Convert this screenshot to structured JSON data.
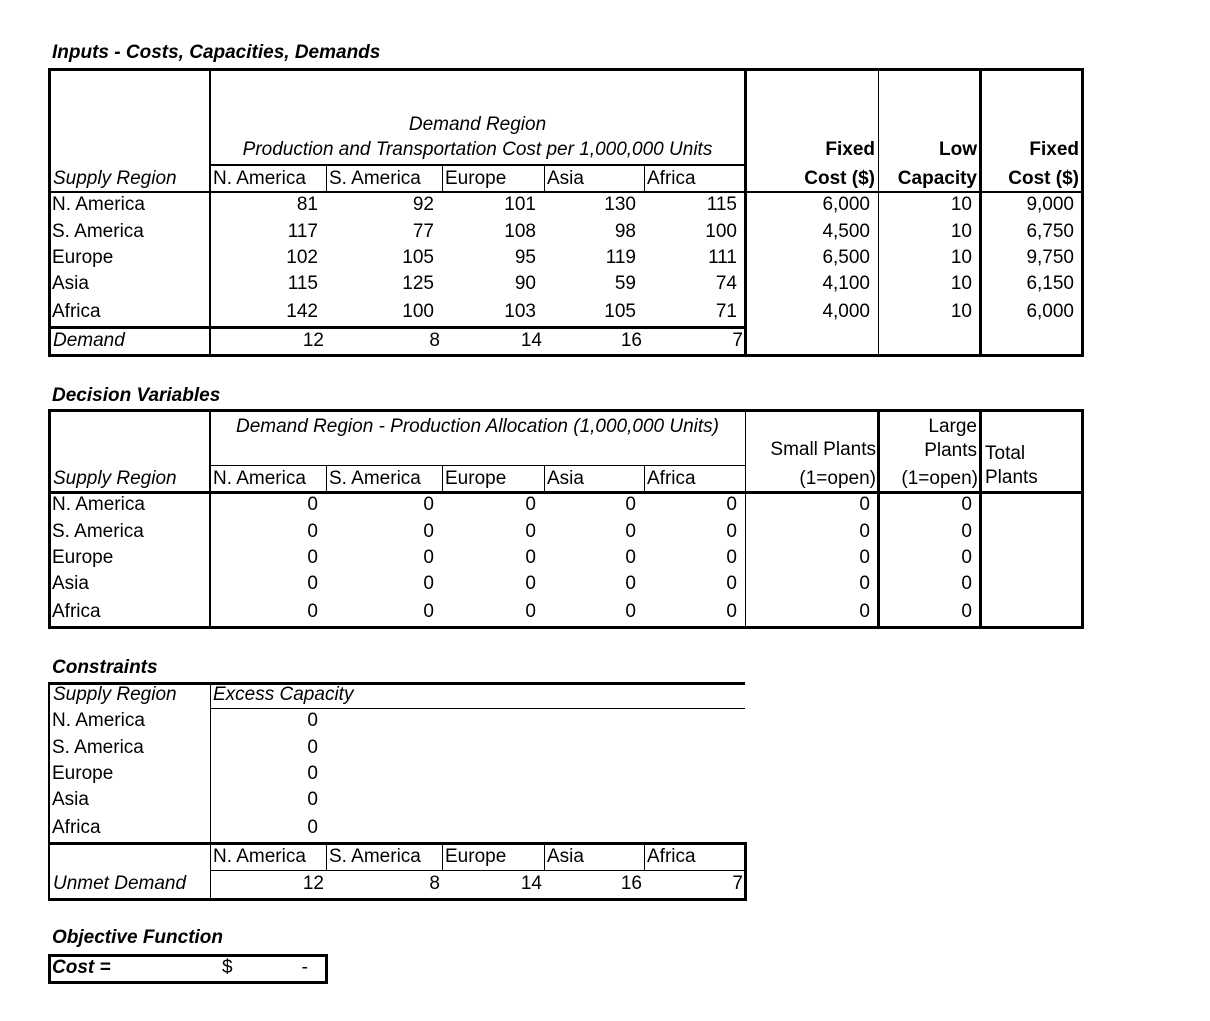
{
  "inputs": {
    "title": "Inputs - Costs, Capacities, Demands",
    "header": {
      "demand_region": "Demand Region",
      "subtitle": "Production and Transportation Cost per 1,000,000 Units",
      "supply_region": "Supply Region",
      "columns": [
        "N. America",
        "S. America",
        "Europe",
        "Asia",
        "Africa"
      ],
      "fixed_cost_small": [
        "Fixed",
        "Cost ($)"
      ],
      "low_capacity": [
        "Low",
        "Capacity"
      ],
      "fixed_cost_large": [
        "Fixed",
        "Cost ($)"
      ]
    },
    "rows": [
      [
        "N. America",
        81,
        92,
        101,
        130,
        115,
        "6,000",
        10,
        "9,000"
      ],
      [
        "S. America",
        117,
        77,
        108,
        98,
        100,
        "4,500",
        10,
        "6,750"
      ],
      [
        "Europe",
        102,
        105,
        95,
        119,
        111,
        "6,500",
        10,
        "9,750"
      ],
      [
        "Asia",
        115,
        125,
        90,
        59,
        74,
        "4,100",
        10,
        "6,150"
      ],
      [
        "Africa",
        142,
        100,
        103,
        105,
        71,
        "4,000",
        10,
        "6,000"
      ]
    ],
    "demand": {
      "label": "Demand",
      "values": [
        12,
        8,
        14,
        16,
        7
      ]
    }
  },
  "decision_variables": {
    "title": "Decision Variables",
    "header": {
      "allocation": "Demand Region - Production Allocation (1,000,000 Units)",
      "supply_region": "Supply Region",
      "columns": [
        "N. America",
        "S. America",
        "Europe",
        "Asia",
        "Africa"
      ],
      "small_plants": [
        "Small Plants",
        "(1=open)"
      ],
      "large_plants": [
        "Large Plants",
        "(1=open)"
      ],
      "total_plants": "Total Plants"
    },
    "rows": [
      [
        "N. America",
        0,
        0,
        0,
        0,
        0,
        0,
        0
      ],
      [
        "S. America",
        0,
        0,
        0,
        0,
        0,
        0,
        0
      ],
      [
        "Europe",
        0,
        0,
        0,
        0,
        0,
        0,
        0
      ],
      [
        "Asia",
        0,
        0,
        0,
        0,
        0,
        0,
        0
      ],
      [
        "Africa",
        0,
        0,
        0,
        0,
        0,
        0,
        0
      ]
    ]
  },
  "constraints": {
    "title": "Constraints",
    "header": {
      "supply_region": "Supply Region",
      "excess_capacity": "Excess Capacity"
    },
    "rows": [
      [
        "N. America",
        0
      ],
      [
        "S. America",
        0
      ],
      [
        "Europe",
        0
      ],
      [
        "Asia",
        0
      ],
      [
        "Africa",
        0
      ]
    ],
    "unmet_header": [
      "N. America",
      "S. America",
      "Europe",
      "Asia",
      "Africa"
    ],
    "unmet_demand": {
      "label": "Unmet Demand",
      "values": [
        12,
        8,
        14,
        16,
        7
      ]
    }
  },
  "objective": {
    "title": "Objective Function",
    "label": "Cost =",
    "currency": "$",
    "value": "-"
  }
}
